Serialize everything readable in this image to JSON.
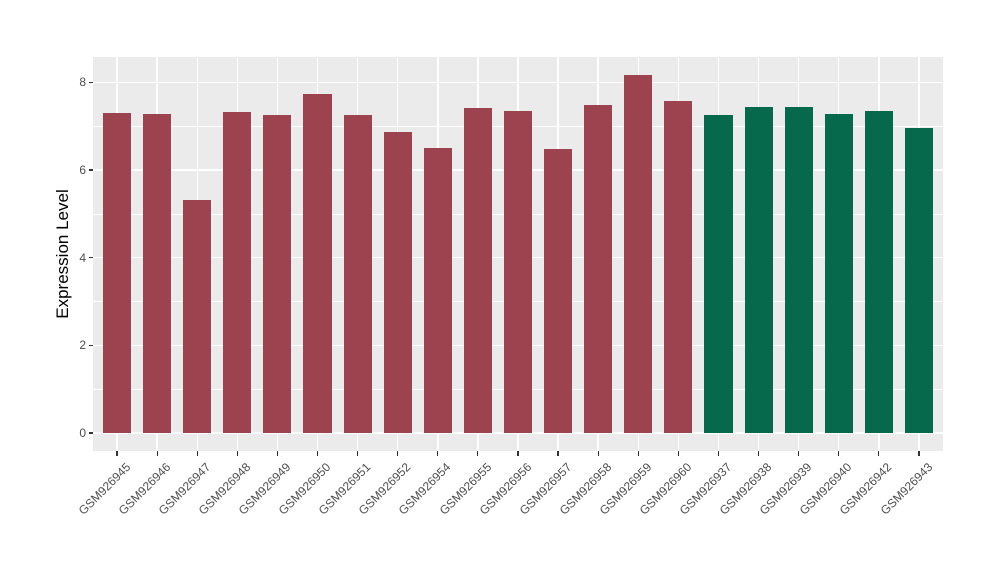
{
  "figure": {
    "background": "#FFFFFF",
    "panel_background": "#EBEBEB",
    "gridline_color": "#FFFFFF",
    "axis_text_color": "#4D4D4D",
    "axis_title_color": "#000000",
    "tick_mark_color": "#333333"
  },
  "chart_data": {
    "type": "bar",
    "title": "",
    "xlabel": "",
    "ylabel": "Expression Level",
    "categories": [
      "GSM926945",
      "GSM926946",
      "GSM926947",
      "GSM926948",
      "GSM926949",
      "GSM926950",
      "GSM926951",
      "GSM926952",
      "GSM926954",
      "GSM926955",
      "GSM926956",
      "GSM926957",
      "GSM926958",
      "GSM926959",
      "GSM926960",
      "GSM926937",
      "GSM926938",
      "GSM926939",
      "GSM926940",
      "GSM926942",
      "GSM926943"
    ],
    "values": [
      7.3,
      7.28,
      5.31,
      7.32,
      7.25,
      7.74,
      7.26,
      6.88,
      6.51,
      7.42,
      7.34,
      6.47,
      7.48,
      8.17,
      7.58,
      7.25,
      7.43,
      7.43,
      7.29,
      7.34,
      6.95
    ],
    "bar_colors": [
      "#9D4350",
      "#9D4350",
      "#9D4350",
      "#9D4350",
      "#9D4350",
      "#9D4350",
      "#9D4350",
      "#9D4350",
      "#9D4350",
      "#9D4350",
      "#9D4350",
      "#9D4350",
      "#9D4350",
      "#9D4350",
      "#9D4350",
      "#07694B",
      "#07694B",
      "#07694B",
      "#07694B",
      "#07694B",
      "#07694B"
    ],
    "group_colors": {
      "left_group": "#9D4350",
      "right_group": "#07694B"
    },
    "ylim": [
      -0.41,
      8.58
    ],
    "yticks": [
      0,
      2,
      4,
      6,
      8
    ],
    "minor_yticks": [
      1,
      3,
      5,
      7
    ],
    "grid": true,
    "legend": "none",
    "bar_width_fraction": 0.7,
    "x_label_rotation_deg": 45
  }
}
